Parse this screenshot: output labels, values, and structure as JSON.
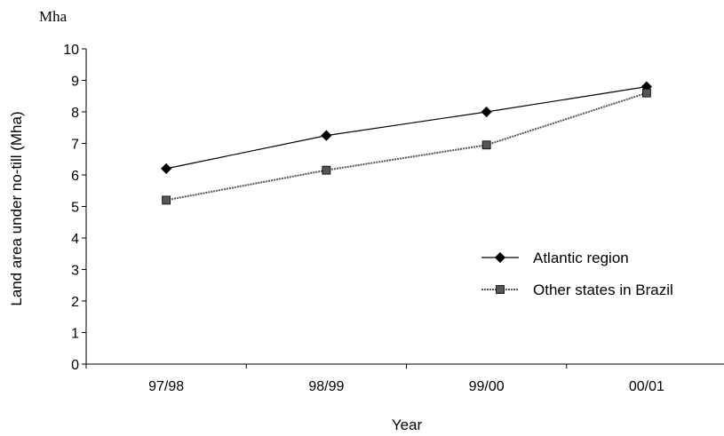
{
  "chart_data": {
    "type": "line",
    "unit_label": "Mha",
    "ylabel": "Land area under no-till (Mha)",
    "xlabel": "Year",
    "categories": [
      "97/98",
      "98/99",
      "99/00",
      "00/01"
    ],
    "ylim": [
      0,
      10
    ],
    "yticks": [
      0,
      1,
      2,
      3,
      4,
      5,
      6,
      7,
      8,
      9,
      10
    ],
    "grid": false,
    "legend_position": "right",
    "series": [
      {
        "name": "Atlantic region",
        "values": [
          6.2,
          7.25,
          8.0,
          8.8
        ],
        "marker": "diamond",
        "color": "#000000",
        "line_style": "solid"
      },
      {
        "name": "Other states in Brazil",
        "values": [
          5.2,
          6.15,
          6.95,
          8.6
        ],
        "marker": "square",
        "color": "#555555",
        "line_style": "dotted"
      }
    ]
  }
}
